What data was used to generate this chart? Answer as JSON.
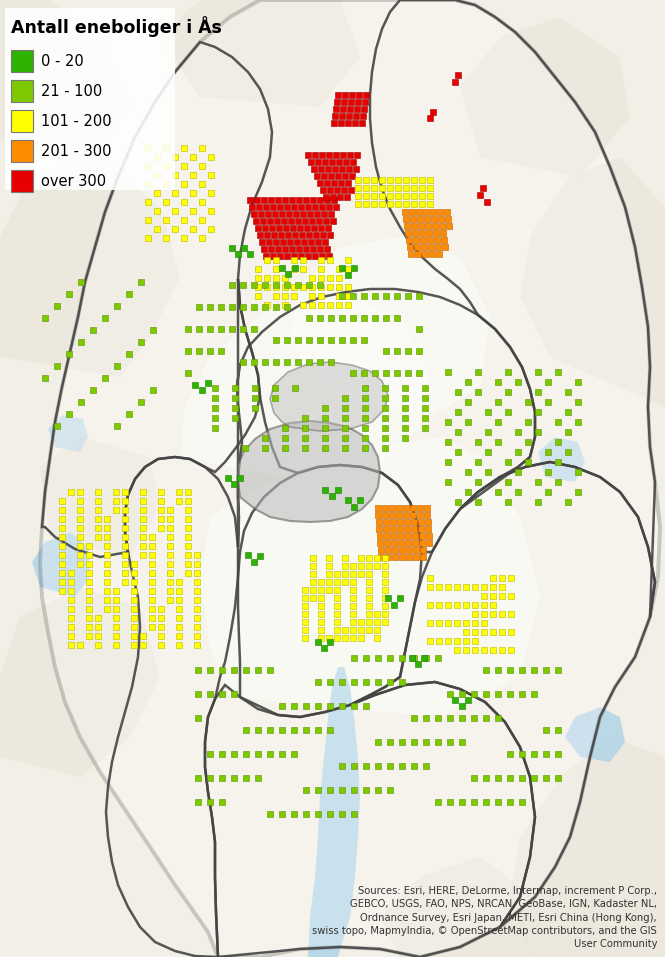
{
  "title": "Antall eneboliger i Ås",
  "legend_items": [
    {
      "label": "0 - 20",
      "color": "#2db300"
    },
    {
      "label": "21 - 100",
      "color": "#7ec800"
    },
    {
      "label": "101 - 200",
      "color": "#ffff00"
    },
    {
      "label": "201 - 300",
      "color": "#ff8c00"
    },
    {
      "label": "over 300",
      "color": "#e60000"
    }
  ],
  "source_text": "Sources: Esri, HERE, DeLorme, Intermap, increment P Corp.,\nGEBCO, USGS, FAO, NPS, NRCAN, GeoBase, IGN, Kadaster NL,\nOrdnance Survey, Esri Japan, METI, Esri China (Hong Kong),\nswiss topo, MapmyIndia, © OpenStreetMap contributors, and the GIS\nUser Community",
  "bg_color": "#f2efe6",
  "legend_bg": "#ffffff",
  "legend_title_fontsize": 12.5,
  "legend_label_fontsize": 10.5,
  "source_fontsize": 7.2,
  "fig_width": 6.65,
  "fig_height": 9.57,
  "dpi": 100,
  "map_bg_color": "#f2efe6",
  "water_color": "#aed3e8",
  "border_color": "#555555",
  "dot_size": 6,
  "dot_colors": {
    "dark_green": "#2db300",
    "light_green": "#7ec800",
    "yellow": "#ffff00",
    "orange": "#ff8c00",
    "red": "#e60000"
  },
  "dot_edge_colors": {
    "dark_green": "#1a8000",
    "light_green": "#5a9400",
    "yellow": "#b8b800",
    "orange": "#c06000",
    "red": "#a00000"
  }
}
